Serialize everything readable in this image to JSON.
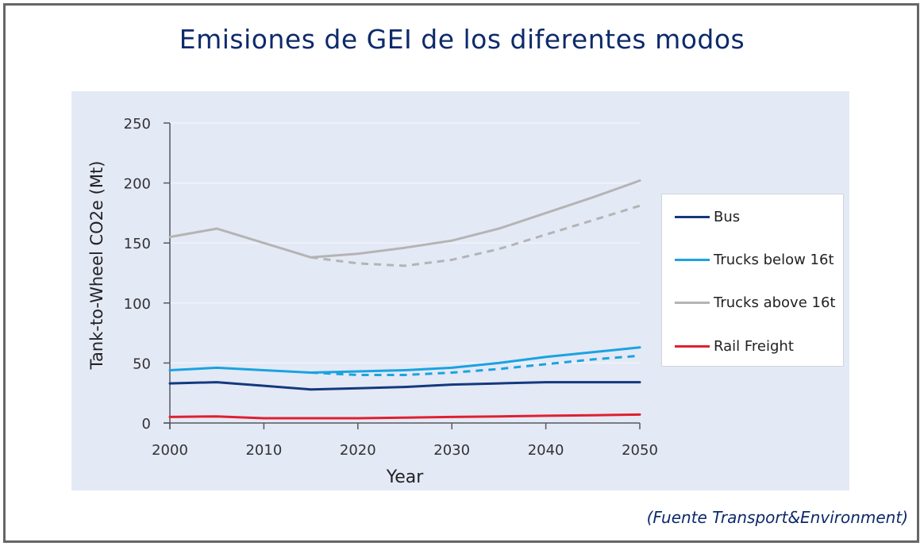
{
  "page": {
    "title": "Emisiones de GEI de los diferentes modos",
    "source": "(Fuente Transport&Environment)"
  },
  "chart_data": {
    "type": "line",
    "title": "",
    "xlabel": "Year",
    "ylabel": "Tank-to-Wheel CO2e (Mt)",
    "xlim": [
      2000,
      2050
    ],
    "ylim": [
      0,
      250
    ],
    "xticks": [
      2000,
      2010,
      2020,
      2030,
      2040,
      2050
    ],
    "yticks": [
      0,
      50,
      100,
      150,
      200,
      250
    ],
    "grid": "horizontal",
    "legend_position": "right",
    "series": [
      {
        "name": "Bus",
        "color": "#14397d",
        "style": "solid",
        "x": [
          2000,
          2005,
          2010,
          2015,
          2020,
          2025,
          2030,
          2035,
          2040,
          2045,
          2050
        ],
        "values": [
          33,
          34,
          31,
          28,
          29,
          30,
          32,
          33,
          34,
          34,
          34
        ]
      },
      {
        "name": "Trucks below 16t",
        "color": "#1aa3e0",
        "style": "solid",
        "x": [
          2000,
          2005,
          2010,
          2015,
          2020,
          2025,
          2030,
          2035,
          2040,
          2045,
          2050
        ],
        "values": [
          44,
          46,
          44,
          42,
          43,
          44,
          46,
          50,
          55,
          59,
          63
        ]
      },
      {
        "name": "Trucks below 16t (scenario)",
        "color": "#1aa3e0",
        "style": "dashed",
        "legend": false,
        "x": [
          2015,
          2020,
          2025,
          2030,
          2035,
          2040,
          2045,
          2050
        ],
        "values": [
          42,
          40,
          40,
          42,
          45,
          49,
          53,
          56
        ]
      },
      {
        "name": "Trucks above 16t",
        "color": "#b4b4b4",
        "style": "solid",
        "x": [
          2000,
          2005,
          2010,
          2015,
          2020,
          2025,
          2030,
          2035,
          2040,
          2045,
          2050
        ],
        "values": [
          155,
          162,
          150,
          138,
          141,
          146,
          152,
          162,
          175,
          188,
          202
        ]
      },
      {
        "name": "Trucks above 16t (scenario)",
        "color": "#b4b4b4",
        "style": "dashed",
        "legend": false,
        "x": [
          2015,
          2020,
          2025,
          2030,
          2035,
          2040,
          2045,
          2050
        ],
        "values": [
          138,
          133,
          131,
          136,
          145,
          157,
          169,
          181
        ]
      },
      {
        "name": "Rail Freight",
        "color": "#e0202e",
        "style": "solid",
        "x": [
          2000,
          2005,
          2010,
          2015,
          2020,
          2025,
          2030,
          2035,
          2040,
          2045,
          2050
        ],
        "values": [
          5,
          5.5,
          4,
          4,
          4,
          4.5,
          5,
          5.5,
          6,
          6.5,
          7
        ]
      }
    ],
    "legend": [
      {
        "label": "Bus",
        "color": "#14397d"
      },
      {
        "label": "Trucks below 16t",
        "color": "#1aa3e0"
      },
      {
        "label": "Trucks above 16t",
        "color": "#b4b4b4"
      },
      {
        "label": "Rail Freight",
        "color": "#e0202e"
      }
    ]
  }
}
